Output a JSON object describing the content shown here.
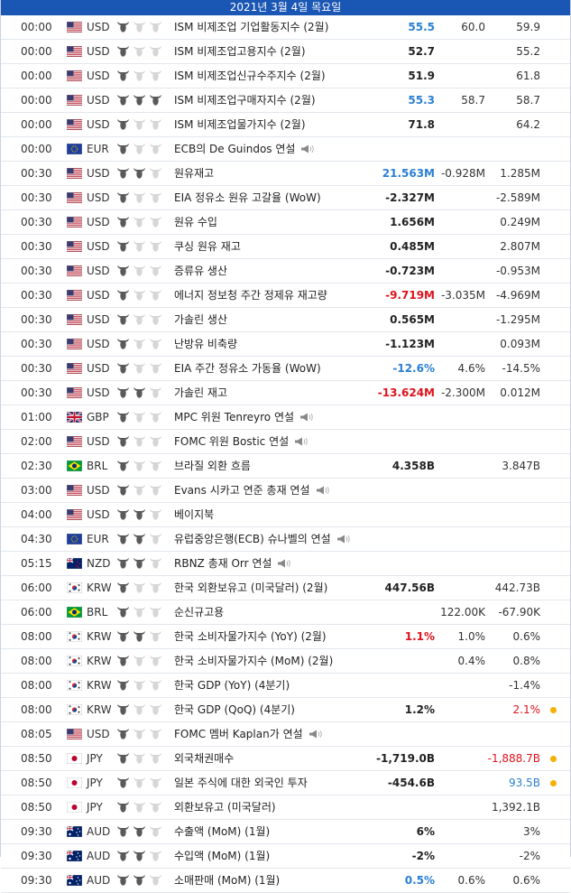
{
  "header": {
    "date": "2021년 3월 4일 목요일"
  },
  "colors": {
    "accent": "#1a56b4",
    "positive": "#2a7fd4",
    "negative": "#e0121c",
    "revised": "#f5b000"
  },
  "rows": [
    {
      "time": "00:00",
      "flag": "us",
      "currency": "USD",
      "importance": 1,
      "event": "ISM 비제조업 기업활동지수 (2월)",
      "speech": false,
      "actual": "55.5",
      "actual_color": "blue",
      "forecast": "60.0",
      "previous": "59.9",
      "previous_color": "",
      "dot": false
    },
    {
      "time": "00:00",
      "flag": "us",
      "currency": "USD",
      "importance": 1,
      "event": "ISM 비제조업고용지수 (2월)",
      "speech": false,
      "actual": "52.7",
      "actual_color": "",
      "forecast": "",
      "previous": "55.2",
      "previous_color": "",
      "dot": false
    },
    {
      "time": "00:00",
      "flag": "us",
      "currency": "USD",
      "importance": 1,
      "event": "ISM 비제조업신규수주지수 (2월)",
      "speech": false,
      "actual": "51.9",
      "actual_color": "",
      "forecast": "",
      "previous": "61.8",
      "previous_color": "",
      "dot": false
    },
    {
      "time": "00:00",
      "flag": "us",
      "currency": "USD",
      "importance": 3,
      "event": "ISM 비제조업구매자지수 (2월)",
      "speech": false,
      "actual": "55.3",
      "actual_color": "blue",
      "forecast": "58.7",
      "previous": "58.7",
      "previous_color": "",
      "dot": false
    },
    {
      "time": "00:00",
      "flag": "us",
      "currency": "USD",
      "importance": 1,
      "event": "ISM 비제조업물가지수 (2월)",
      "speech": false,
      "actual": "71.8",
      "actual_color": "",
      "forecast": "",
      "previous": "64.2",
      "previous_color": "",
      "dot": false
    },
    {
      "time": "00:00",
      "flag": "eu",
      "currency": "EUR",
      "importance": 1,
      "event": "ECB의 De Guindos 연설",
      "speech": true,
      "actual": "",
      "actual_color": "",
      "forecast": "",
      "previous": "",
      "previous_color": "",
      "dot": false
    },
    {
      "time": "00:30",
      "flag": "us",
      "currency": "USD",
      "importance": 2,
      "event": "원유재고",
      "speech": false,
      "actual": "21.563M",
      "actual_color": "blue",
      "forecast": "-0.928M",
      "previous": "1.285M",
      "previous_color": "",
      "dot": false
    },
    {
      "time": "00:30",
      "flag": "us",
      "currency": "USD",
      "importance": 1,
      "event": "EIA 정유소 원유 고갈율 (WoW)",
      "speech": false,
      "actual": "-2.327M",
      "actual_color": "",
      "forecast": "",
      "previous": "-2.589M",
      "previous_color": "",
      "dot": false
    },
    {
      "time": "00:30",
      "flag": "us",
      "currency": "USD",
      "importance": 1,
      "event": "원유 수입",
      "speech": false,
      "actual": "1.656M",
      "actual_color": "",
      "forecast": "",
      "previous": "0.249M",
      "previous_color": "",
      "dot": false
    },
    {
      "time": "00:30",
      "flag": "us",
      "currency": "USD",
      "importance": 1,
      "event": "쿠싱 원유 재고",
      "speech": false,
      "actual": "0.485M",
      "actual_color": "",
      "forecast": "",
      "previous": "2.807M",
      "previous_color": "",
      "dot": false
    },
    {
      "time": "00:30",
      "flag": "us",
      "currency": "USD",
      "importance": 1,
      "event": "증류유 생산",
      "speech": false,
      "actual": "-0.723M",
      "actual_color": "",
      "forecast": "",
      "previous": "-0.953M",
      "previous_color": "",
      "dot": false
    },
    {
      "time": "00:30",
      "flag": "us",
      "currency": "USD",
      "importance": 1,
      "event": "에너지 정보청 주간 정제유 재고량",
      "speech": false,
      "actual": "-9.719M",
      "actual_color": "red",
      "forecast": "-3.035M",
      "previous": "-4.969M",
      "previous_color": "",
      "dot": false
    },
    {
      "time": "00:30",
      "flag": "us",
      "currency": "USD",
      "importance": 1,
      "event": "가솔린 생산",
      "speech": false,
      "actual": "0.565M",
      "actual_color": "",
      "forecast": "",
      "previous": "-1.295M",
      "previous_color": "",
      "dot": false
    },
    {
      "time": "00:30",
      "flag": "us",
      "currency": "USD",
      "importance": 1,
      "event": "난방유 비축량",
      "speech": false,
      "actual": "-1.123M",
      "actual_color": "",
      "forecast": "",
      "previous": "0.093M",
      "previous_color": "",
      "dot": false
    },
    {
      "time": "00:30",
      "flag": "us",
      "currency": "USD",
      "importance": 1,
      "event": "EIA 주간 정유소 가동율 (WoW)",
      "speech": false,
      "actual": "-12.6%",
      "actual_color": "blue",
      "forecast": "4.6%",
      "previous": "-14.5%",
      "previous_color": "",
      "dot": false
    },
    {
      "time": "00:30",
      "flag": "us",
      "currency": "USD",
      "importance": 2,
      "event": "가솔린 재고",
      "speech": false,
      "actual": "-13.624M",
      "actual_color": "red",
      "forecast": "-2.300M",
      "previous": "0.012M",
      "previous_color": "",
      "dot": false
    },
    {
      "time": "01:00",
      "flag": "gb",
      "currency": "GBP",
      "importance": 1,
      "event": "MPC 위원 Tenreyro 연설",
      "speech": true,
      "actual": "",
      "actual_color": "",
      "forecast": "",
      "previous": "",
      "previous_color": "",
      "dot": false
    },
    {
      "time": "02:00",
      "flag": "us",
      "currency": "USD",
      "importance": 1,
      "event": "FOMC 위원 Bostic 연설",
      "speech": true,
      "actual": "",
      "actual_color": "",
      "forecast": "",
      "previous": "",
      "previous_color": "",
      "dot": false
    },
    {
      "time": "02:30",
      "flag": "br",
      "currency": "BRL",
      "importance": 1,
      "event": "브라질 외환 흐름",
      "speech": false,
      "actual": "4.358B",
      "actual_color": "",
      "forecast": "",
      "previous": "3.847B",
      "previous_color": "",
      "dot": false
    },
    {
      "time": "03:00",
      "flag": "us",
      "currency": "USD",
      "importance": 1,
      "event": "Evans 시카고 연준 총재 연설",
      "speech": true,
      "actual": "",
      "actual_color": "",
      "forecast": "",
      "previous": "",
      "previous_color": "",
      "dot": false
    },
    {
      "time": "04:00",
      "flag": "us",
      "currency": "USD",
      "importance": 2,
      "event": "베이지북",
      "speech": false,
      "actual": "",
      "actual_color": "",
      "forecast": "",
      "previous": "",
      "previous_color": "",
      "dot": false
    },
    {
      "time": "04:30",
      "flag": "eu",
      "currency": "EUR",
      "importance": 2,
      "event": "유럽중앙은행(ECB) 슈나벨의 연설",
      "speech": true,
      "actual": "",
      "actual_color": "",
      "forecast": "",
      "previous": "",
      "previous_color": "",
      "dot": false
    },
    {
      "time": "05:15",
      "flag": "nz",
      "currency": "NZD",
      "importance": 2,
      "event": "RBNZ 총재 Orr 연설",
      "speech": true,
      "actual": "",
      "actual_color": "",
      "forecast": "",
      "previous": "",
      "previous_color": "",
      "dot": false
    },
    {
      "time": "06:00",
      "flag": "kr",
      "currency": "KRW",
      "importance": 1,
      "event": "한국 외환보유고 (미국달러) (2월)",
      "speech": false,
      "actual": "447.56B",
      "actual_color": "",
      "forecast": "",
      "previous": "442.73B",
      "previous_color": "",
      "dot": false
    },
    {
      "time": "06:00",
      "flag": "br",
      "currency": "BRL",
      "importance": 1,
      "event": "순신규고용",
      "speech": false,
      "actual": "",
      "actual_color": "",
      "forecast": "122.00K",
      "previous": "-67.90K",
      "previous_color": "",
      "dot": false
    },
    {
      "time": "08:00",
      "flag": "kr",
      "currency": "KRW",
      "importance": 2,
      "event": "한국 소비자물가지수 (YoY) (2월)",
      "speech": false,
      "actual": "1.1%",
      "actual_color": "red",
      "forecast": "1.0%",
      "previous": "0.6%",
      "previous_color": "",
      "dot": false
    },
    {
      "time": "08:00",
      "flag": "kr",
      "currency": "KRW",
      "importance": 1,
      "event": "한국 소비자물가지수 (MoM) (2월)",
      "speech": false,
      "actual": "",
      "actual_color": "",
      "forecast": "0.4%",
      "previous": "0.8%",
      "previous_color": "",
      "dot": false
    },
    {
      "time": "08:00",
      "flag": "kr",
      "currency": "KRW",
      "importance": 1,
      "event": "한국 GDP (YoY) (4분기)",
      "speech": false,
      "actual": "",
      "actual_color": "",
      "forecast": "",
      "previous": "-1.4%",
      "previous_color": "",
      "dot": false
    },
    {
      "time": "08:00",
      "flag": "kr",
      "currency": "KRW",
      "importance": 1,
      "event": "한국 GDP (QoQ) (4분기)",
      "speech": false,
      "actual": "1.2%",
      "actual_color": "",
      "forecast": "",
      "previous": "2.1%",
      "previous_color": "red",
      "dot": true
    },
    {
      "time": "08:05",
      "flag": "us",
      "currency": "USD",
      "importance": 1,
      "event": "FOMC 멤버 Kaplan가 연설",
      "speech": true,
      "actual": "",
      "actual_color": "",
      "forecast": "",
      "previous": "",
      "previous_color": "",
      "dot": false
    },
    {
      "time": "08:50",
      "flag": "jp",
      "currency": "JPY",
      "importance": 1,
      "event": "외국채권매수",
      "speech": false,
      "actual": "-1,719.0B",
      "actual_color": "",
      "forecast": "",
      "previous": "-1,888.7B",
      "previous_color": "red",
      "dot": true
    },
    {
      "time": "08:50",
      "flag": "jp",
      "currency": "JPY",
      "importance": 1,
      "event": "일본 주식에 대한 외국인 투자",
      "speech": false,
      "actual": "-454.6B",
      "actual_color": "",
      "forecast": "",
      "previous": "93.5B",
      "previous_color": "blue",
      "dot": true
    },
    {
      "time": "08:50",
      "flag": "jp",
      "currency": "JPY",
      "importance": 1,
      "event": "외환보유고 (미국달러)",
      "speech": false,
      "actual": "",
      "actual_color": "",
      "forecast": "",
      "previous": "1,392.1B",
      "previous_color": "",
      "dot": false
    },
    {
      "time": "09:30",
      "flag": "au",
      "currency": "AUD",
      "importance": 2,
      "event": "수출액 (MoM) (1월)",
      "speech": false,
      "actual": "6%",
      "actual_color": "",
      "forecast": "",
      "previous": "3%",
      "previous_color": "",
      "dot": false
    },
    {
      "time": "09:30",
      "flag": "au",
      "currency": "AUD",
      "importance": 2,
      "event": "수입액 (MoM) (1월)",
      "speech": false,
      "actual": "-2%",
      "actual_color": "",
      "forecast": "",
      "previous": "-2%",
      "previous_color": "",
      "dot": false
    },
    {
      "time": "09:30",
      "flag": "au",
      "currency": "AUD",
      "importance": 2,
      "event": "소매판매 (MoM) (1월)",
      "speech": false,
      "actual": "0.5%",
      "actual_color": "blue",
      "forecast": "0.6%",
      "previous": "0.6%",
      "previous_color": "",
      "dot": false
    }
  ]
}
